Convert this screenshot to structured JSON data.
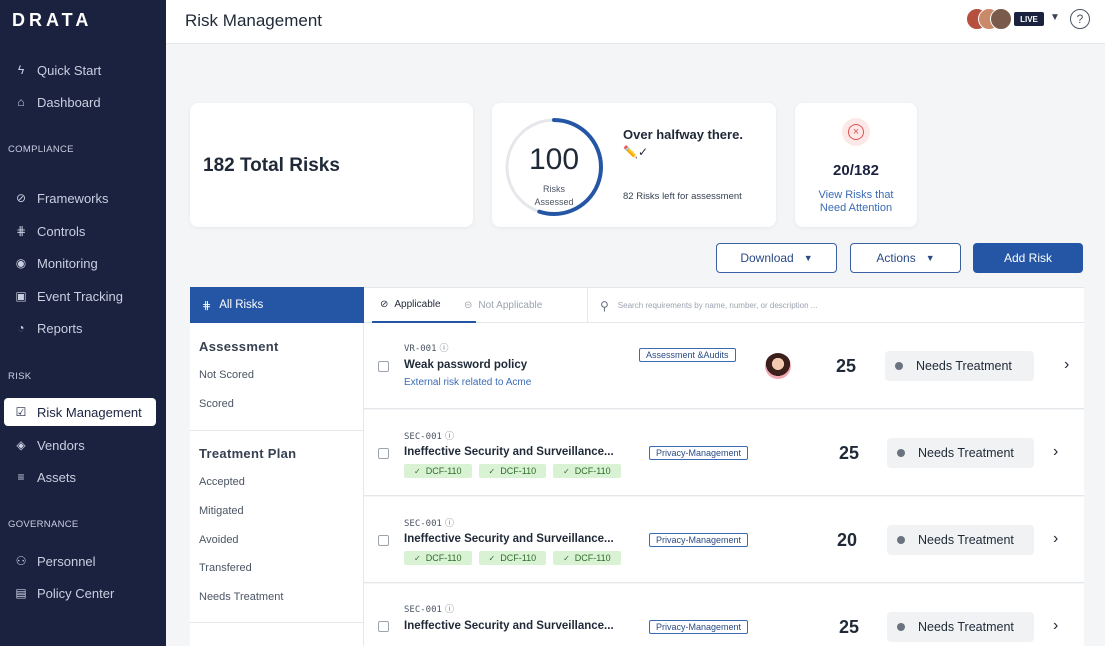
{
  "app": {
    "logo": "DRATA",
    "page_title": "Risk Management"
  },
  "sidebar": {
    "items_top": [
      {
        "label": "Quick Start",
        "icon": "bolt-icon"
      },
      {
        "label": "Dashboard",
        "icon": "home-icon"
      }
    ],
    "compliance_heading": "COMPLIANCE",
    "compliance_items": [
      {
        "label": "Frameworks",
        "icon": "compass-icon"
      },
      {
        "label": "Controls",
        "icon": "sliders-icon"
      },
      {
        "label": "Monitoring",
        "icon": "broadcast-icon"
      },
      {
        "label": "Event Tracking",
        "icon": "calendar-icon"
      },
      {
        "label": "Reports",
        "icon": "pie-icon"
      }
    ],
    "risk_heading": "RISK",
    "risk_items": [
      {
        "label": "Risk Management",
        "icon": "checkbox-icon",
        "active": true
      },
      {
        "label": "Vendors",
        "icon": "layers-icon"
      },
      {
        "label": "Assets",
        "icon": "list-icon"
      }
    ],
    "governance_heading": "GOVERNANCE",
    "governance_items": [
      {
        "label": "Personnel",
        "icon": "users-icon"
      },
      {
        "label": "Policy Center",
        "icon": "document-icon"
      }
    ]
  },
  "header": {
    "live_badge": "LIVE",
    "help_icon": "?"
  },
  "summary": {
    "total_risks": "182 Total Risks",
    "assessed_number": "100",
    "assessed_label_1": "Risks",
    "assessed_label_2": "Assessed",
    "progress_fraction": 0.55,
    "halfway_title": "Over halfway there.",
    "halfway_emoji": "✏️✓",
    "left_for_assessment": "82 Risks left for assessment",
    "attention_count": "20/182",
    "attention_link_1": "View Risks that",
    "attention_link_2": "Need Attention"
  },
  "actions": {
    "download": "Download",
    "actions": "Actions",
    "add_risk": "Add Risk"
  },
  "filters": {
    "all_risks": "All Risks",
    "assessment_title": "Assessment",
    "assessment_items": [
      "Not Scored",
      "Scored"
    ],
    "treatment_title": "Treatment Plan",
    "treatment_items": [
      "Accepted",
      "Mitigated",
      "Avoided",
      "Transfered",
      "Needs Treatment"
    ]
  },
  "tabs": {
    "applicable": "Applicable",
    "not_applicable": "Not Applicable",
    "search_placeholder": "Search requirements by name, number, or description ..."
  },
  "rows": [
    {
      "id": "VR-001",
      "title": "Weak password policy",
      "subtitle": "External risk related to Acme",
      "tag": "Assessment &Audits",
      "score": "25",
      "status": "Needs Treatment",
      "chips": []
    },
    {
      "id": "SEC-001",
      "title": "Ineffective Security and Surveillance...",
      "tag": "Privacy-Management",
      "score": "25",
      "status": "Needs Treatment",
      "chips": [
        "DCF-110",
        "DCF-110",
        "DCF-110"
      ]
    },
    {
      "id": "SEC-001",
      "title": "Ineffective Security and Surveillance...",
      "tag": "Privacy-Management",
      "score": "20",
      "status": "Needs Treatment",
      "chips": [
        "DCF-110",
        "DCF-110",
        "DCF-110"
      ]
    },
    {
      "id": "SEC-001",
      "title": "Ineffective Security and Surveillance...",
      "tag": "Privacy-Management",
      "score": "25",
      "status": "Needs Treatment",
      "chips": []
    }
  ]
}
